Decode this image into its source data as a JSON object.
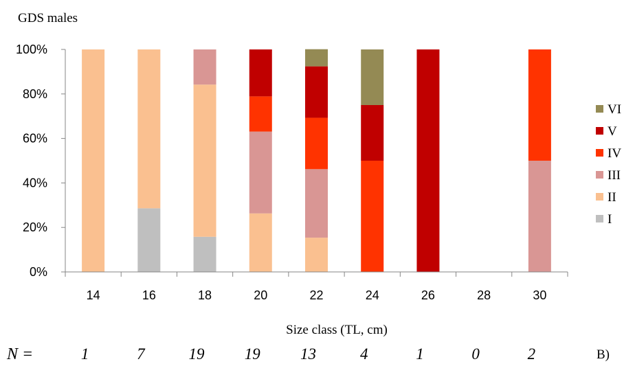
{
  "chart_data": {
    "type": "bar",
    "stacked": true,
    "normalized": true,
    "title": "GDS males",
    "xlabel": "Size class (TL, cm)",
    "ylabel": "",
    "ylim": [
      0,
      100
    ],
    "yticks": [
      "0%",
      "20%",
      "40%",
      "60%",
      "80%",
      "100%"
    ],
    "categories": [
      "14",
      "16",
      "18",
      "20",
      "22",
      "24",
      "26",
      "28",
      "30"
    ],
    "series": [
      {
        "name": "I",
        "color": "#bfbfbf",
        "values": [
          0,
          28.6,
          15.8,
          0,
          0,
          0,
          0,
          0,
          0
        ]
      },
      {
        "name": "II",
        "color": "#fac090",
        "values": [
          100,
          71.4,
          68.4,
          26.3,
          15.4,
          0,
          0,
          0,
          0
        ]
      },
      {
        "name": "III",
        "color": "#d99694",
        "values": [
          0,
          0,
          15.8,
          36.8,
          30.8,
          0,
          0,
          0,
          50
        ]
      },
      {
        "name": "IV",
        "color": "#ff3300",
        "values": [
          0,
          0,
          0,
          15.8,
          23.1,
          50,
          0,
          0,
          50
        ]
      },
      {
        "name": "V",
        "color": "#c00000",
        "values": [
          0,
          0,
          0,
          21.1,
          23.1,
          25,
          100,
          0,
          0
        ]
      },
      {
        "name": "VI",
        "color": "#948a54",
        "values": [
          0,
          0,
          0,
          0,
          7.7,
          25,
          0,
          0,
          0
        ]
      }
    ],
    "legend_position": "right",
    "n_label": "N =",
    "n_values": [
      "1",
      "7",
      "19",
      "19",
      "13",
      "4",
      "1",
      "0",
      "2"
    ],
    "panel_label": "B)"
  }
}
